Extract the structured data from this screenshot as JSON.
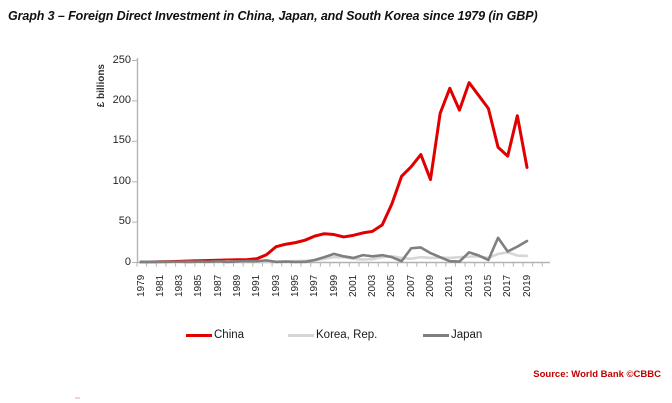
{
  "title": "Graph 3  – Foreign Direct Investment in China, Japan, and South Korea since 1979 (in GBP)",
  "source": "Source: World Bank ©CBBC",
  "y_axis": {
    "label": "£ billions",
    "ticks": [
      0,
      50,
      100,
      150,
      200,
      250
    ]
  },
  "x_axis": {
    "tick_labels": [
      "1979",
      "1981",
      "1983",
      "1985",
      "1987",
      "1989",
      "1991",
      "1993",
      "1995",
      "1997",
      "1999",
      "2001",
      "2003",
      "2005",
      "2007",
      "2009",
      "2011",
      "2013",
      "2015",
      "2017",
      "2019"
    ]
  },
  "colors": {
    "china": "#e00000",
    "korea": "#d6d6d6",
    "japan": "#7f7f7f",
    "axis": "#b3b3b3",
    "source_text": "#c00000"
  },
  "chart_data": {
    "type": "line",
    "title": "Foreign Direct Investment in China, Japan, and South Korea since 1979 (in GBP)",
    "xlabel": "",
    "ylabel": "£ billions",
    "ylim": [
      0,
      250
    ],
    "grid": false,
    "legend_position": "bottom",
    "x": [
      1979,
      1980,
      1981,
      1982,
      1983,
      1984,
      1985,
      1986,
      1987,
      1988,
      1989,
      1990,
      1991,
      1992,
      1993,
      1994,
      1995,
      1996,
      1997,
      1998,
      1999,
      2000,
      2001,
      2002,
      2003,
      2004,
      2005,
      2006,
      2007,
      2008,
      2009,
      2010,
      2011,
      2012,
      2013,
      2014,
      2015,
      2016,
      2017,
      2018,
      2019
    ],
    "series": [
      {
        "name": "China",
        "color": "#e00000",
        "width": 3,
        "values": [
          0,
          0,
          0.3,
          0.5,
          0.8,
          1.2,
          1.5,
          1.8,
          2.2,
          2.5,
          2.8,
          3,
          4,
          9,
          19,
          22,
          24,
          27,
          32,
          35,
          34,
          31,
          33,
          36,
          38,
          46,
          72,
          106,
          118,
          133,
          102,
          184,
          215,
          188,
          222,
          206,
          190,
          142,
          131,
          181,
          117
        ]
      },
      {
        "name": "Korea, Rep.",
        "color": "#d6d6d6",
        "width": 2.6,
        "values": [
          0.1,
          0.1,
          0.1,
          0.1,
          0.1,
          0.2,
          0.2,
          0.3,
          0.4,
          0.6,
          0.5,
          0.6,
          0.8,
          0.6,
          0.5,
          0.6,
          1.2,
          1.5,
          2,
          4,
          6,
          6,
          4,
          3,
          3.5,
          6,
          7,
          5,
          4,
          6,
          5,
          5.5,
          5,
          6,
          6.5,
          7,
          5,
          10,
          12,
          8,
          7.5
        ]
      },
      {
        "name": "Japan",
        "color": "#7f7f7f",
        "width": 2.6,
        "values": [
          0.2,
          0.2,
          0.2,
          0.3,
          0.3,
          0,
          0.5,
          0.2,
          0.8,
          0,
          0.7,
          1.2,
          1,
          2,
          0.1,
          0.6,
          0,
          0.2,
          2.5,
          6,
          10,
          7,
          5,
          8.5,
          7,
          8.5,
          6,
          1,
          17,
          18,
          11,
          6,
          1,
          0.5,
          12,
          8,
          2.5,
          30,
          13,
          19,
          26
        ]
      }
    ]
  }
}
